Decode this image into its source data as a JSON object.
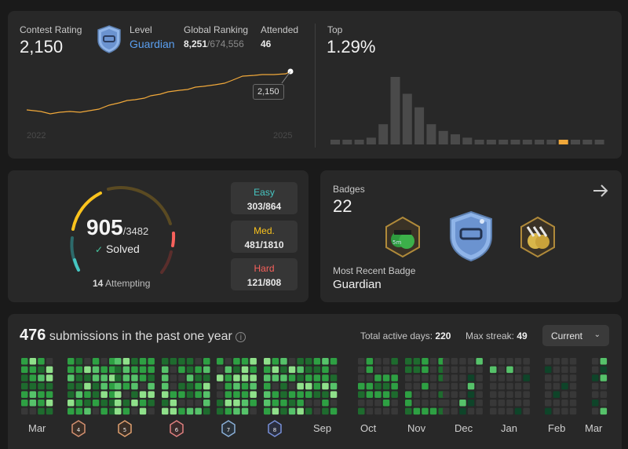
{
  "rating": {
    "label": "Contest Rating",
    "value": "2,150",
    "level_label": "Level",
    "level_value": "Guardian",
    "ranking_label": "Global Ranking",
    "ranking_value": "8,251",
    "ranking_total": "/674,556",
    "attended_label": "Attended",
    "attended_value": "46",
    "tooltip": "2,150",
    "year_start": "2022",
    "year_end": "2025",
    "top_label": "Top",
    "top_value": "1.29%",
    "distribution": [
      1,
      1,
      1,
      2,
      6,
      20,
      15,
      11,
      6,
      4,
      3,
      2,
      1,
      1,
      1,
      1,
      1,
      1,
      1,
      1,
      1,
      1,
      1
    ],
    "highlight_index": 19,
    "line_color": "#f0a83a",
    "highlight_color": "#f0a83a"
  },
  "solved": {
    "solved_count": "905",
    "total": "/3482",
    "solved_label": "Solved",
    "attempting_count": "14",
    "attempting_label": "Attempting",
    "difficulties": [
      {
        "name": "Easy",
        "value": "303/864",
        "color": "#46c6c2"
      },
      {
        "name": "Med.",
        "value": "481/1810",
        "color": "#fac31d"
      },
      {
        "name": "Hard",
        "value": "121/808",
        "color": "#f8615c"
      }
    ]
  },
  "badges": {
    "label": "Badges",
    "count": "22",
    "recent_label": "Most Recent Badge",
    "recent_value": "Guardian",
    "icons": [
      "50-days-badge-icon",
      "guardian-badge-icon",
      "annual-badge-icon"
    ]
  },
  "submissions": {
    "count": "476",
    "title_suffix": "submissions in the past one year",
    "active_days_label": "Total active days:",
    "active_days_value": "220",
    "streak_label": "Max streak:",
    "streak_value": "49",
    "select_value": "Current",
    "months": [
      "Mar",
      "Sep",
      "Oct",
      "Nov",
      "Dec",
      "Jan",
      "Feb",
      "Mar"
    ],
    "badge_numbers": [
      "4",
      "5",
      "6",
      "7",
      "8"
    ]
  }
}
